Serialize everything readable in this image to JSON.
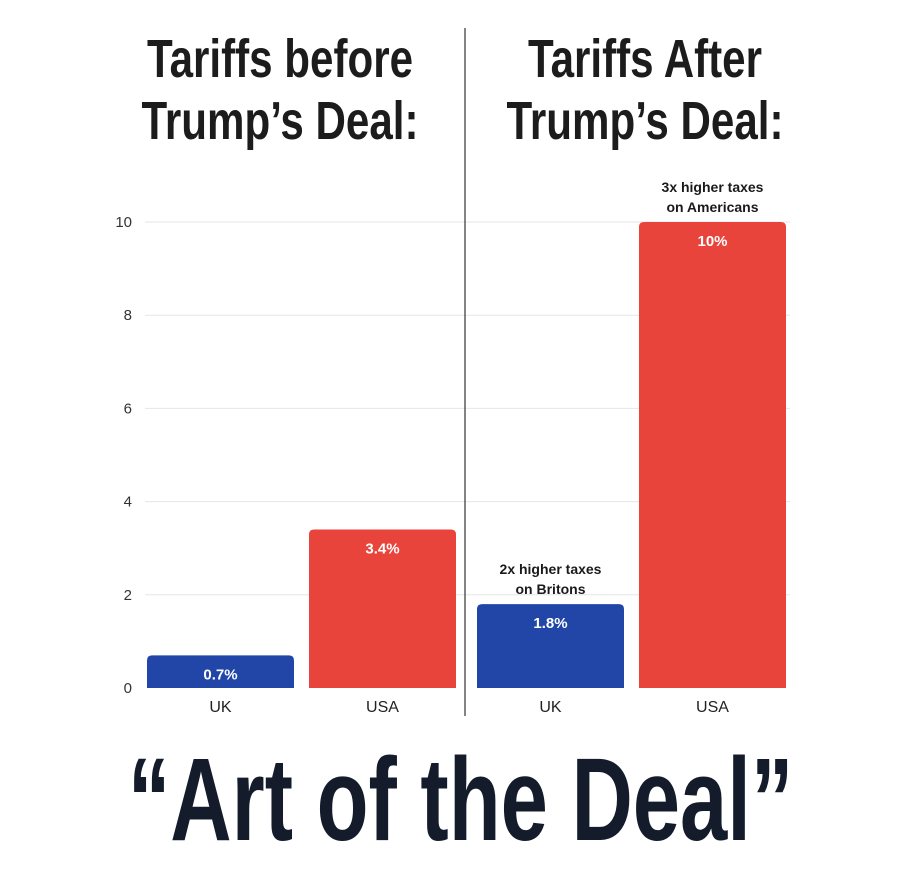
{
  "titles": {
    "before": [
      "Tariffs before",
      "Trump’s Deal:"
    ],
    "after": [
      "Tariffs After",
      "Trump’s Deal:"
    ]
  },
  "caption": "“Art of the Deal”",
  "colors": {
    "uk": "#2146a8",
    "usa": "#e8443c",
    "grid": "#e6e6e6",
    "divider": "#333333"
  },
  "chart_data": {
    "type": "bar",
    "ylim": [
      0,
      10
    ],
    "yticks": [
      0,
      2,
      4,
      6,
      8,
      10
    ],
    "grid": true,
    "panels": [
      {
        "title": "Tariffs before Trump’s Deal:",
        "categories": [
          "UK",
          "USA"
        ],
        "values": [
          0.7,
          3.4
        ],
        "labels": [
          "0.7%",
          "3.4%"
        ],
        "annotations": [
          "",
          ""
        ]
      },
      {
        "title": "Tariffs After Trump’s Deal:",
        "categories": [
          "UK",
          "USA"
        ],
        "values": [
          1.8,
          10
        ],
        "labels": [
          "1.8%",
          "10%"
        ],
        "annotations": [
          [
            "2x higher taxes",
            "on Britons"
          ],
          [
            "3x higher taxes",
            "on Americans"
          ]
        ]
      }
    ]
  }
}
